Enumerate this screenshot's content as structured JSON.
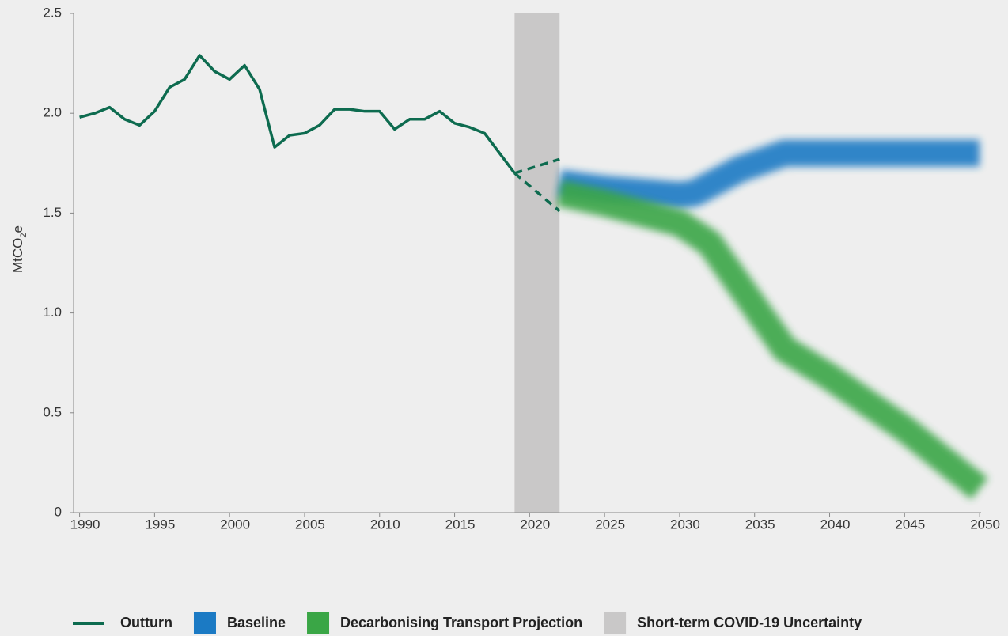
{
  "chart_data": {
    "type": "line",
    "ylabel": [
      "MtCO",
      "2",
      "e"
    ],
    "xlim": [
      1989.6,
      2050.1
    ],
    "xticks": [
      1990,
      1995,
      2000,
      2005,
      2010,
      2015,
      2020,
      2025,
      2030,
      2035,
      2040,
      2045,
      2050
    ],
    "ylim": [
      0,
      2.5
    ],
    "yticks": [
      0,
      0.5,
      {
        "value": 1.0,
        "label": "1.0"
      },
      1.5,
      {
        "value": 2.0,
        "label": "2.0"
      },
      2.5
    ],
    "grid": false,
    "legend": "bottom",
    "band": {
      "name": "Short-term COVID-19 Uncertainty",
      "color": "#c9c8c8",
      "x": [
        2019,
        2022
      ]
    },
    "covid_range": {
      "color": "#0d6b4f",
      "x": [
        2019,
        2022
      ],
      "upper": [
        1.7,
        1.77
      ],
      "lower": [
        1.7,
        1.51
      ]
    },
    "series": [
      {
        "name": "Outturn",
        "color": "#0d6b4f",
        "style": "solid",
        "x": [
          1990,
          1991,
          1992,
          1993,
          1994,
          1995,
          1996,
          1997,
          1998,
          1999,
          2000,
          2001,
          2002,
          2003,
          2004,
          2005,
          2006,
          2007,
          2008,
          2009,
          2010,
          2011,
          2012,
          2013,
          2014,
          2015,
          2016,
          2017,
          2018,
          2019
        ],
        "values": [
          1.98,
          2.0,
          2.03,
          1.97,
          1.94,
          2.01,
          2.13,
          2.17,
          2.29,
          2.21,
          2.17,
          2.24,
          2.12,
          1.83,
          1.89,
          1.9,
          1.94,
          2.02,
          2.02,
          2.01,
          2.01,
          1.92,
          1.97,
          1.97,
          2.01,
          1.95,
          1.93,
          1.9,
          1.8,
          1.7
        ]
      },
      {
        "name": "Baseline",
        "color": "#1b7ac4",
        "style": "blur",
        "x": [
          2022,
          2025,
          2030,
          2031,
          2034,
          2037,
          2050
        ],
        "values": [
          1.65,
          1.62,
          1.59,
          1.6,
          1.72,
          1.8,
          1.8
        ]
      },
      {
        "name": "Decarbonising Transport Projection",
        "color": "#3aa646",
        "style": "blur",
        "x": [
          2022,
          2025,
          2030,
          2032,
          2037,
          2040,
          2045,
          2050
        ],
        "values": [
          1.6,
          1.55,
          1.45,
          1.35,
          0.82,
          0.68,
          0.42,
          0.12
        ]
      }
    ]
  }
}
